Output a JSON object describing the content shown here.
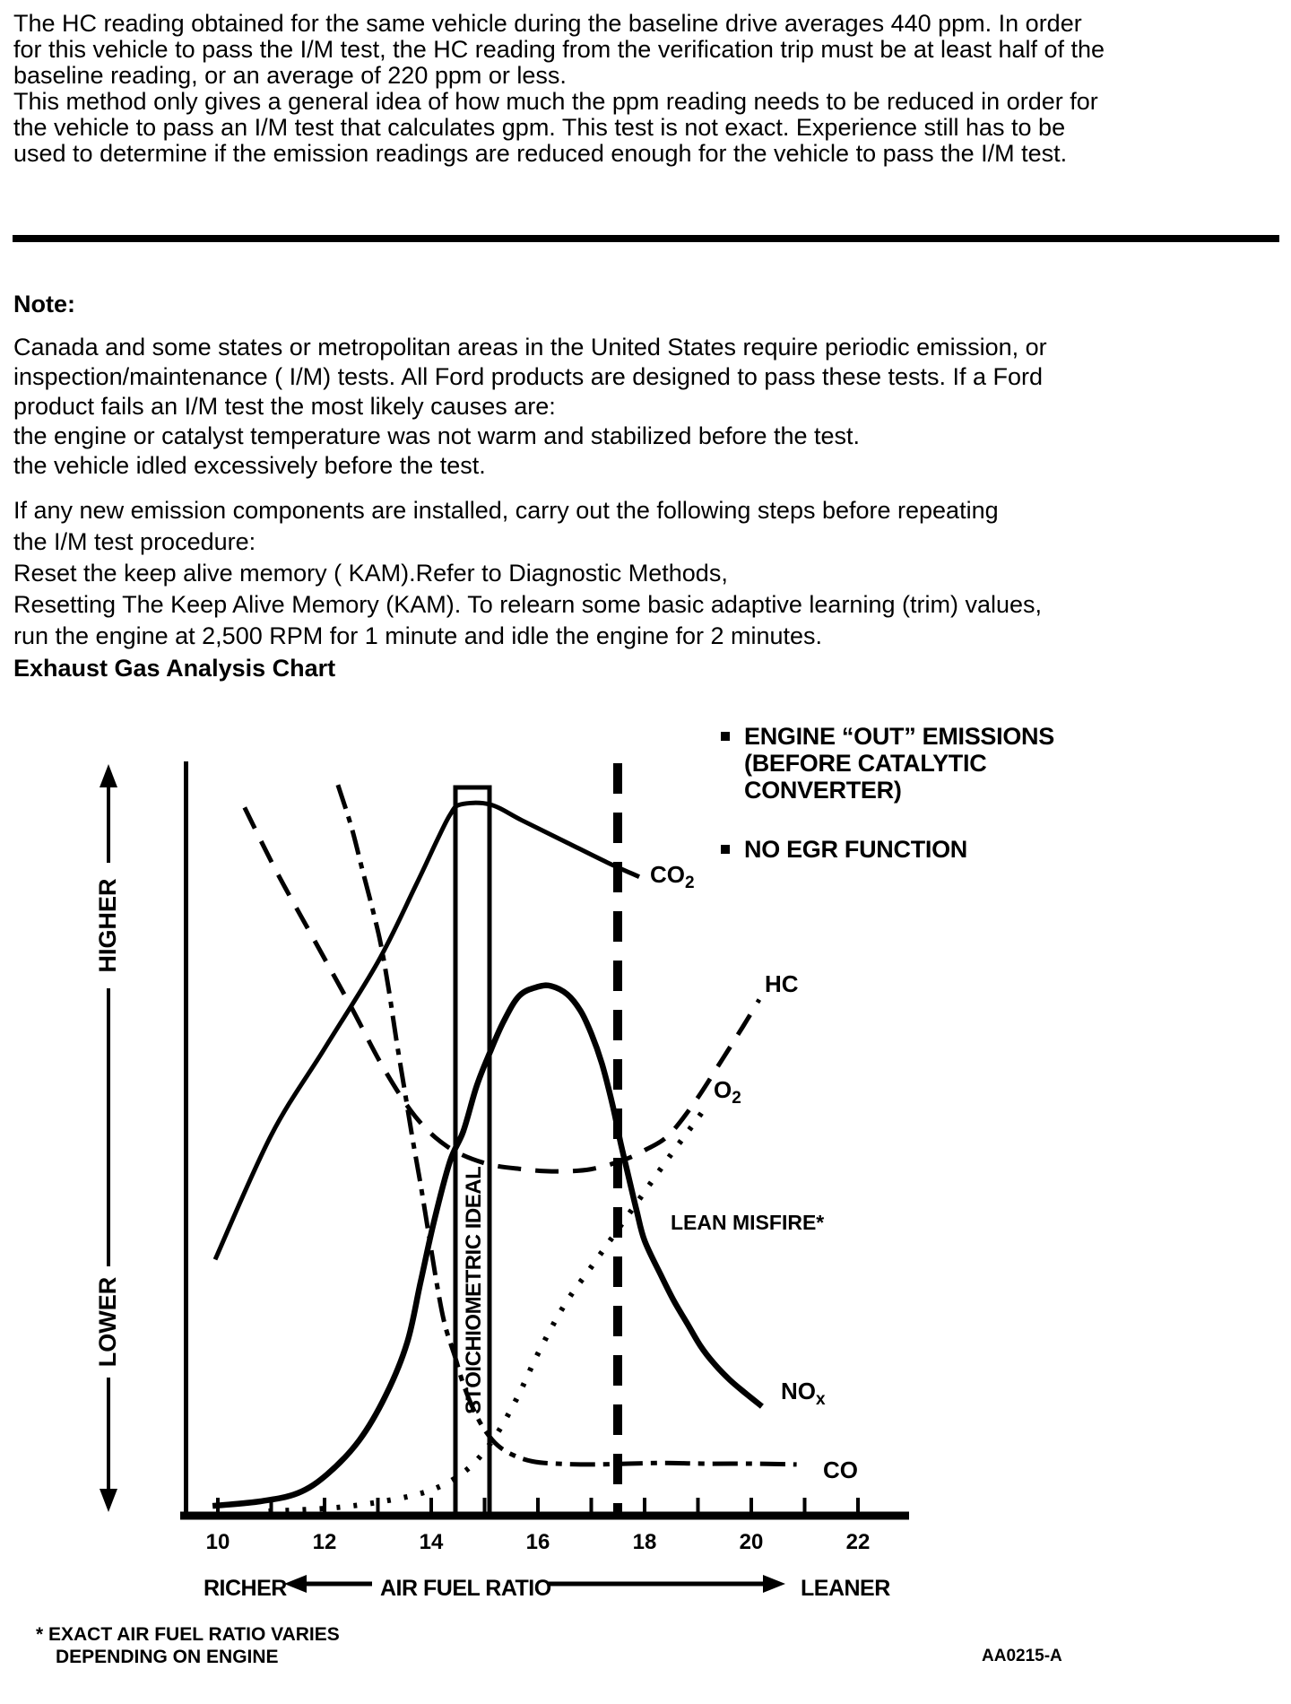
{
  "page": {
    "background": "#ffffff",
    "ink": "#000000"
  },
  "document": {
    "intro_paragraph": "The HC reading obtained for the same vehicle during the baseline drive averages 440 ppm. In order\nfor this vehicle to pass the I/M test, the HC reading from the verification trip must be at least half of the\nbaseline reading, or an average of 220 ppm or less.\nThis method only gives a general idea of how much the ppm reading needs to be reduced in order for\nthe vehicle to pass an I/M test that calculates gpm. This test is not exact. Experience still has to be\nused to determine if the emission readings are reduced enough for the vehicle to pass the I/M test.",
    "note_heading": "Note:",
    "note_paragraph": "Canada and some states or metropolitan areas in the United States require periodic emission, or\ninspection/maintenance ( I/M) tests. All Ford products are designed to pass these tests. If a Ford\nproduct fails an I/M test the most likely causes are:\nthe engine or catalyst temperature was not warm and stabilized before the test.\nthe vehicle idled excessively before the test.",
    "steps_paragraph": "If any new emission components are installed, carry out the following steps before repeating\nthe I/M test procedure:\nReset the keep alive memory ( KAM).Refer to Diagnostic Methods,\nResetting The Keep Alive Memory (KAM). To relearn some basic adaptive learning (trim) values,\nrun the engine at 2,500 RPM for 1 minute and idle the engine for 2 minutes.",
    "chart_heading": "Exhaust Gas Analysis Chart"
  },
  "chart_data": {
    "type": "line",
    "title": "Exhaust Gas Analysis Chart",
    "xlabel": "AIR FUEL RATIO",
    "ylabel": "",
    "x_direction_labels": {
      "left": "RICHER",
      "right": "LEANER"
    },
    "y_axis_arrow_labels": {
      "top": "HIGHER",
      "bottom": "LOWER"
    },
    "x_tick_labels": [
      10,
      12,
      14,
      16,
      18,
      20,
      22
    ],
    "x_minor_ticks": [
      10,
      11,
      12,
      13,
      14,
      15,
      16,
      17,
      18,
      19,
      20,
      21,
      22
    ],
    "x_range": [
      9.3,
      23.0
    ],
    "y_range": [
      0,
      100
    ],
    "y_scale_note": "relative concentration, unlabeled axis (LOWER to HIGHER)",
    "grid": false,
    "notes": [
      "ENGINE “OUT” EMISSIONS\n(BEFORE CATALYTIC\nCONVERTER)",
      "NO EGR FUNCTION"
    ],
    "annotations": {
      "stoichiometric_band": {
        "label": "STOICHIOMETRIC IDEAL",
        "x_from": 14.45,
        "x_to": 15.1,
        "top_level": 96.6
      },
      "lean_misfire_limit": {
        "x": 17.5,
        "style": "bold-dashed-vertical-line"
      },
      "lean_misfire_label": {
        "text": "LEAN MISFIRE*",
        "at": [
          18.5,
          38
        ]
      }
    },
    "footnote": "* EXACT AIR FUEL RATIO VARIES\nDEPENDING ON ENGINE",
    "figure_code": "AA0215-A",
    "series": [
      {
        "name": "CO2",
        "label": {
          "main": "CO",
          "sub": "2"
        },
        "style": "solid",
        "width": 5,
        "label_at": [
          18.1,
          84
        ],
        "points": [
          [
            9.95,
            34
          ],
          [
            11,
            50.5
          ],
          [
            12,
            62
          ],
          [
            13,
            73.5
          ],
          [
            13.7,
            83.5
          ],
          [
            14.1,
            89.5
          ],
          [
            14.35,
            93
          ],
          [
            14.55,
            94.4
          ],
          [
            15.1,
            94.4
          ],
          [
            15.7,
            92.3
          ],
          [
            16.5,
            89.5
          ],
          [
            17.3,
            86.7
          ],
          [
            17.9,
            84.8
          ]
        ]
      },
      {
        "name": "HC",
        "label": {
          "main": "HC",
          "sub": ""
        },
        "style": "dash",
        "width": 5,
        "label_at": [
          20.25,
          69.5
        ],
        "points": [
          [
            10.5,
            94
          ],
          [
            11.1,
            85.5
          ],
          [
            11.8,
            76.5
          ],
          [
            12.5,
            67.5
          ],
          [
            13.1,
            59.5
          ],
          [
            13.7,
            53
          ],
          [
            14.3,
            49
          ],
          [
            15,
            46.8
          ],
          [
            15.7,
            46
          ],
          [
            16.35,
            45.7
          ],
          [
            17,
            46
          ],
          [
            17.6,
            47.2
          ],
          [
            18,
            48.5
          ],
          [
            18.45,
            50.5
          ],
          [
            18.95,
            55
          ],
          [
            19.45,
            60.5
          ],
          [
            19.85,
            65
          ],
          [
            20.15,
            68.5
          ]
        ]
      },
      {
        "name": "O2",
        "label": {
          "main": "O",
          "sub": "2"
        },
        "style": "dot",
        "width": 6,
        "label_at": [
          19.3,
          55.5
        ],
        "points": [
          [
            10.95,
            0.6
          ],
          [
            12.1,
            1
          ],
          [
            13.1,
            1.9
          ],
          [
            14,
            3.4
          ],
          [
            14.65,
            6
          ],
          [
            15.15,
            10
          ],
          [
            15.6,
            15.5
          ],
          [
            16,
            21.5
          ],
          [
            16.5,
            28
          ],
          [
            17,
            33
          ],
          [
            17.5,
            38
          ],
          [
            18,
            43
          ],
          [
            18.5,
            48
          ],
          [
            18.95,
            52.3
          ],
          [
            19.2,
            54.8
          ]
        ]
      },
      {
        "name": "NOx",
        "label": {
          "main": "NO",
          "sub": "x"
        },
        "style": "solid",
        "width": 6.5,
        "label_at": [
          20.55,
          15.5
        ],
        "points": [
          [
            9.9,
            1.3
          ],
          [
            10.8,
            1.9
          ],
          [
            11.5,
            3
          ],
          [
            12.05,
            5.5
          ],
          [
            12.65,
            10
          ],
          [
            13.15,
            16
          ],
          [
            13.55,
            23
          ],
          [
            13.8,
            31
          ],
          [
            14.05,
            39
          ],
          [
            14.35,
            47
          ],
          [
            14.6,
            51
          ],
          [
            14.85,
            57
          ],
          [
            15.1,
            61.5
          ],
          [
            15.35,
            65.5
          ],
          [
            15.65,
            69
          ],
          [
            16,
            70.2
          ],
          [
            16.25,
            70.3
          ],
          [
            16.55,
            69.2
          ],
          [
            16.8,
            67
          ],
          [
            17,
            64
          ],
          [
            17.2,
            60
          ],
          [
            17.4,
            54.5
          ],
          [
            17.55,
            49.5
          ],
          [
            17.7,
            45
          ],
          [
            17.85,
            40.5
          ],
          [
            18,
            36.5
          ],
          [
            18.3,
            32
          ],
          [
            18.55,
            28.5
          ],
          [
            18.8,
            25.5
          ],
          [
            19.05,
            22.5
          ],
          [
            19.3,
            20.2
          ],
          [
            19.6,
            18
          ],
          [
            19.9,
            16.2
          ],
          [
            20.2,
            14.5
          ]
        ]
      },
      {
        "name": "CO",
        "label": {
          "main": "CO",
          "sub": ""
        },
        "style": "dashdot",
        "width": 5,
        "label_at": [
          21.35,
          5
        ],
        "points": [
          [
            12.25,
            97
          ],
          [
            12.5,
            91.5
          ],
          [
            12.7,
            86
          ],
          [
            12.9,
            80.5
          ],
          [
            13.05,
            76
          ],
          [
            13.2,
            70
          ],
          [
            13.35,
            63
          ],
          [
            13.5,
            56.5
          ],
          [
            13.65,
            50
          ],
          [
            13.8,
            44
          ],
          [
            13.95,
            37.5
          ],
          [
            14.1,
            31
          ],
          [
            14.25,
            25.5
          ],
          [
            14.45,
            21
          ],
          [
            14.6,
            17.5
          ],
          [
            14.8,
            14
          ],
          [
            15,
            11.4
          ],
          [
            15.25,
            9.3
          ],
          [
            15.55,
            8
          ],
          [
            15.9,
            7.2
          ],
          [
            16.35,
            6.9
          ],
          [
            17,
            6.8
          ],
          [
            17.7,
            6.9
          ],
          [
            18.4,
            7
          ],
          [
            19.1,
            6.9
          ],
          [
            20,
            6.9
          ],
          [
            20.85,
            6.8
          ]
        ]
      }
    ]
  }
}
